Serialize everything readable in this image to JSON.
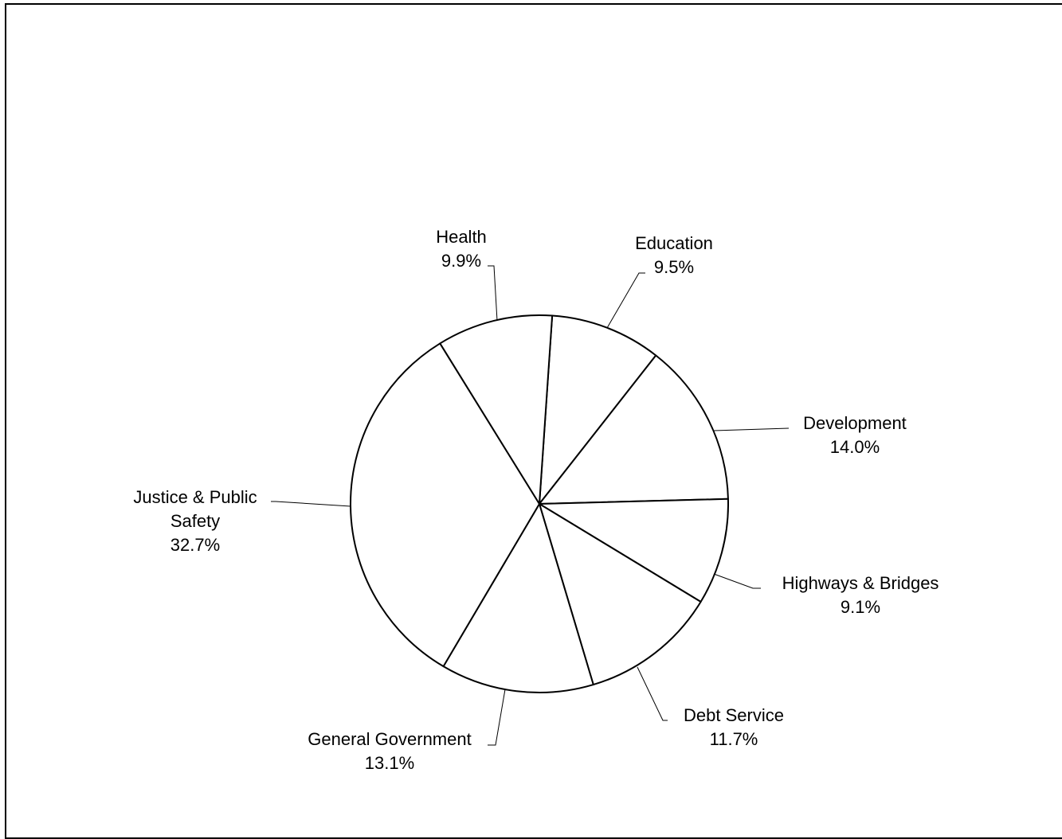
{
  "chart_data": {
    "type": "pie",
    "title": "",
    "slices": [
      {
        "label": [
          "Education"
        ],
        "value": 9.5,
        "value_label": "9.5%"
      },
      {
        "label": [
          "Development"
        ],
        "value": 14.0,
        "value_label": "14.0%"
      },
      {
        "label": [
          "Highways & Bridges"
        ],
        "value": 9.1,
        "value_label": "9.1%"
      },
      {
        "label": [
          "Debt Service"
        ],
        "value": 11.7,
        "value_label": "11.7%"
      },
      {
        "label": [
          "General Government"
        ],
        "value": 13.1,
        "value_label": "13.1%"
      },
      {
        "label": [
          "Justice & Public",
          "Safety"
        ],
        "value": 32.7,
        "value_label": "32.7%"
      },
      {
        "label": [
          "Health"
        ],
        "value": 9.9,
        "value_label": "9.9%"
      }
    ],
    "start_angle_deg": 3.9,
    "direction": "clockwise",
    "slice_fill": "#ffffff",
    "slice_stroke": "#000000",
    "legend": "none",
    "data_labels": "outside with leader lines"
  }
}
